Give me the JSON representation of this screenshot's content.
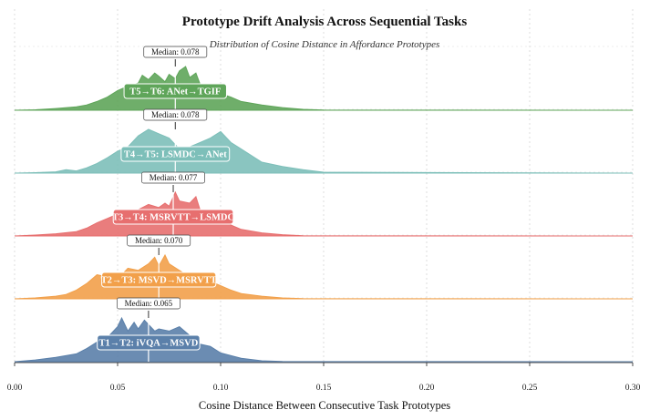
{
  "chart_data": {
    "type": "ridgeline",
    "title": "Prototype Drift Analysis Across Sequential Tasks",
    "subtitle": "Distribution of Cosine Distance in Affordance Prototypes",
    "xlabel": "Cosine Distance Between Consecutive Task Prototypes",
    "xlim": [
      0.0,
      0.3
    ],
    "xticks": [
      "0.00",
      "0.05",
      "0.10",
      "0.15",
      "0.20",
      "0.25",
      "0.30"
    ],
    "median_prefix": "Median: ",
    "grid": true,
    "series": [
      {
        "name": "T5→T6: ANet→TGIF",
        "median": 0.078,
        "median_label": "0.078",
        "color": "#5fa55a",
        "x": [
          0.0,
          0.01,
          0.02,
          0.03,
          0.035,
          0.04,
          0.045,
          0.05,
          0.055,
          0.06,
          0.062,
          0.065,
          0.068,
          0.07,
          0.073,
          0.075,
          0.078,
          0.08,
          0.083,
          0.085,
          0.088,
          0.09,
          0.095,
          0.1,
          0.105,
          0.11,
          0.12,
          0.13,
          0.14,
          0.15,
          0.3
        ],
        "y": [
          0.0,
          0.01,
          0.04,
          0.08,
          0.12,
          0.2,
          0.3,
          0.45,
          0.55,
          0.62,
          0.8,
          0.7,
          0.85,
          0.78,
          0.65,
          0.82,
          0.72,
          0.9,
          1.0,
          0.75,
          0.85,
          0.6,
          0.5,
          0.38,
          0.3,
          0.2,
          0.12,
          0.06,
          0.02,
          0.005,
          0.0
        ]
      },
      {
        "name": "T4→T5: LSMDC→ANet",
        "median": 0.078,
        "median_label": "0.078",
        "color": "#7dbfb9",
        "x": [
          0.0,
          0.01,
          0.02,
          0.025,
          0.03,
          0.035,
          0.04,
          0.045,
          0.05,
          0.055,
          0.06,
          0.065,
          0.07,
          0.075,
          0.08,
          0.085,
          0.09,
          0.095,
          0.1,
          0.105,
          0.11,
          0.115,
          0.12,
          0.13,
          0.14,
          0.15,
          0.3
        ],
        "y": [
          0.0,
          0.01,
          0.03,
          0.08,
          0.05,
          0.12,
          0.22,
          0.35,
          0.5,
          0.6,
          0.85,
          1.0,
          0.9,
          0.8,
          0.55,
          0.6,
          0.7,
          0.8,
          0.95,
          0.7,
          0.55,
          0.4,
          0.25,
          0.15,
          0.08,
          0.02,
          0.0
        ]
      },
      {
        "name": "T3→T4: MSRVTT→LSMDC",
        "median": 0.077,
        "median_label": "0.077",
        "color": "#e76f6f",
        "x": [
          0.0,
          0.01,
          0.02,
          0.03,
          0.035,
          0.04,
          0.045,
          0.05,
          0.055,
          0.06,
          0.065,
          0.07,
          0.073,
          0.075,
          0.078,
          0.08,
          0.085,
          0.088,
          0.09,
          0.095,
          0.1,
          0.105,
          0.11,
          0.12,
          0.13,
          0.14,
          0.3
        ],
        "y": [
          0.0,
          0.02,
          0.05,
          0.1,
          0.18,
          0.3,
          0.4,
          0.5,
          0.55,
          0.6,
          0.72,
          0.65,
          0.75,
          0.68,
          1.0,
          0.8,
          0.75,
          0.9,
          0.6,
          0.5,
          0.4,
          0.25,
          0.15,
          0.07,
          0.03,
          0.005,
          0.0
        ]
      },
      {
        "name": "T2→T3: MSVD→MSRVTT",
        "median": 0.07,
        "median_label": "0.070",
        "color": "#f2a04a",
        "x": [
          0.0,
          0.01,
          0.02,
          0.025,
          0.03,
          0.035,
          0.04,
          0.045,
          0.05,
          0.055,
          0.06,
          0.065,
          0.068,
          0.07,
          0.073,
          0.075,
          0.08,
          0.085,
          0.09,
          0.095,
          0.1,
          0.105,
          0.11,
          0.12,
          0.13,
          0.14,
          0.3
        ],
        "y": [
          0.0,
          0.02,
          0.06,
          0.1,
          0.2,
          0.35,
          0.55,
          0.5,
          0.45,
          0.7,
          0.65,
          0.8,
          0.95,
          0.75,
          1.0,
          0.8,
          0.65,
          0.5,
          0.45,
          0.4,
          0.3,
          0.2,
          0.12,
          0.06,
          0.02,
          0.005,
          0.0
        ]
      },
      {
        "name": "T1→T2: iVQA→MSVD",
        "median": 0.065,
        "median_label": "0.065",
        "color": "#5b80aa",
        "x": [
          0.0,
          0.01,
          0.02,
          0.03,
          0.035,
          0.04,
          0.045,
          0.05,
          0.052,
          0.055,
          0.058,
          0.06,
          0.063,
          0.065,
          0.068,
          0.07,
          0.075,
          0.08,
          0.085,
          0.09,
          0.095,
          0.1,
          0.11,
          0.12,
          0.13,
          0.3
        ],
        "y": [
          0.0,
          0.04,
          0.1,
          0.18,
          0.3,
          0.45,
          0.55,
          0.8,
          1.0,
          0.7,
          0.9,
          0.75,
          0.95,
          0.85,
          0.7,
          0.75,
          0.7,
          0.8,
          0.6,
          0.4,
          0.35,
          0.2,
          0.08,
          0.02,
          0.005,
          0.0
        ]
      }
    ]
  }
}
